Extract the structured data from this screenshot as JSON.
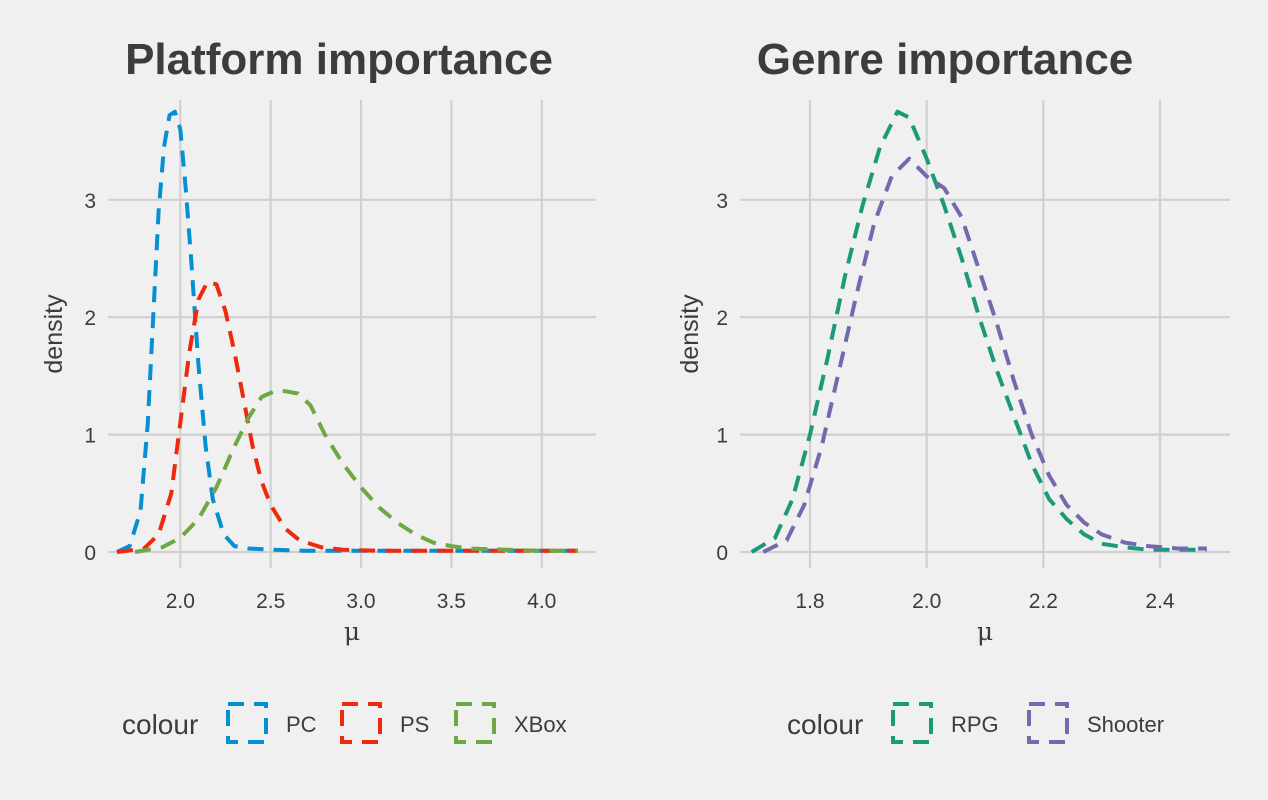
{
  "chart_data": [
    {
      "type": "line",
      "title": "Platform importance",
      "xlabel": "μ",
      "ylabel": "density",
      "xlim": [
        1.6,
        4.3
      ],
      "ylim": [
        0,
        3.85
      ],
      "xticks": [
        2.0,
        2.5,
        3.0,
        3.5,
        4.0
      ],
      "xtick_labels": [
        "2.0",
        "2.5",
        "3.0",
        "3.5",
        "4.0"
      ],
      "yticks": [
        0,
        1,
        2,
        3
      ],
      "ytick_labels": [
        "0",
        "1",
        "2",
        "3"
      ],
      "grid": true,
      "legend": {
        "title": "colour",
        "position": "bottom"
      },
      "series": [
        {
          "name": "PC",
          "color": "#0590d4",
          "x": [
            1.65,
            1.72,
            1.78,
            1.82,
            1.85,
            1.88,
            1.91,
            1.94,
            1.97,
            2.0,
            2.03,
            2.06,
            2.1,
            2.14,
            2.18,
            2.24,
            2.3,
            2.38,
            2.5,
            2.7,
            3.0,
            3.5,
            4.0,
            4.2
          ],
          "y": [
            0.0,
            0.05,
            0.35,
            1.1,
            2.0,
            2.9,
            3.45,
            3.72,
            3.75,
            3.6,
            3.1,
            2.5,
            1.6,
            0.9,
            0.45,
            0.15,
            0.05,
            0.03,
            0.02,
            0.01,
            0.01,
            0.01,
            0.01,
            0.01
          ]
        },
        {
          "name": "PS",
          "color": "#ee2a0e",
          "x": [
            1.65,
            1.8,
            1.88,
            1.95,
            2.0,
            2.05,
            2.1,
            2.15,
            2.2,
            2.25,
            2.3,
            2.35,
            2.4,
            2.45,
            2.5,
            2.58,
            2.66,
            2.78,
            2.9,
            3.1,
            3.4,
            3.7,
            4.0,
            4.2
          ],
          "y": [
            0.0,
            0.03,
            0.15,
            0.5,
            1.1,
            1.7,
            2.15,
            2.3,
            2.28,
            2.05,
            1.7,
            1.3,
            0.9,
            0.6,
            0.4,
            0.2,
            0.1,
            0.04,
            0.02,
            0.01,
            0.01,
            0.01,
            0.01,
            0.01
          ]
        },
        {
          "name": "XBox",
          "color": "#6ea845",
          "x": [
            1.75,
            1.9,
            2.0,
            2.1,
            2.2,
            2.3,
            2.38,
            2.45,
            2.52,
            2.58,
            2.65,
            2.72,
            2.8,
            2.9,
            3.0,
            3.1,
            3.2,
            3.3,
            3.4,
            3.5,
            3.6,
            3.8,
            4.0,
            4.2
          ],
          "y": [
            0.0,
            0.04,
            0.12,
            0.28,
            0.55,
            0.9,
            1.15,
            1.32,
            1.37,
            1.37,
            1.35,
            1.25,
            1.0,
            0.75,
            0.55,
            0.38,
            0.25,
            0.15,
            0.08,
            0.05,
            0.03,
            0.02,
            0.01,
            0.01
          ]
        }
      ]
    },
    {
      "type": "line",
      "title": "Genre importance",
      "xlabel": "μ",
      "ylabel": "density",
      "xlim": [
        1.68,
        2.52
      ],
      "ylim": [
        0,
        3.85
      ],
      "xticks": [
        1.8,
        2.0,
        2.2,
        2.4
      ],
      "xtick_labels": [
        "1.8",
        "2.0",
        "2.2",
        "2.4"
      ],
      "yticks": [
        0,
        1,
        2,
        3
      ],
      "ytick_labels": [
        "0",
        "1",
        "2",
        "3"
      ],
      "grid": true,
      "legend": {
        "title": "colour",
        "position": "bottom"
      },
      "series": [
        {
          "name": "RPG",
          "color": "#1a9a78",
          "x": [
            1.7,
            1.74,
            1.77,
            1.8,
            1.83,
            1.86,
            1.89,
            1.92,
            1.95,
            1.97,
            2.0,
            2.03,
            2.06,
            2.09,
            2.12,
            2.15,
            2.18,
            2.21,
            2.24,
            2.27,
            2.3,
            2.34,
            2.38,
            2.43,
            2.48
          ],
          "y": [
            0.0,
            0.12,
            0.45,
            1.0,
            1.65,
            2.35,
            2.95,
            3.45,
            3.75,
            3.7,
            3.35,
            2.95,
            2.5,
            2.0,
            1.55,
            1.15,
            0.75,
            0.45,
            0.28,
            0.15,
            0.07,
            0.04,
            0.02,
            0.02,
            0.02
          ]
        },
        {
          "name": "Shooter",
          "color": "#7469ae",
          "x": [
            1.72,
            1.76,
            1.79,
            1.82,
            1.85,
            1.88,
            1.91,
            1.94,
            1.97,
            2.0,
            2.03,
            2.06,
            2.09,
            2.12,
            2.15,
            2.18,
            2.21,
            2.24,
            2.27,
            2.3,
            2.34,
            2.38,
            2.43,
            2.48
          ],
          "y": [
            0.0,
            0.1,
            0.4,
            0.9,
            1.55,
            2.2,
            2.8,
            3.2,
            3.35,
            3.2,
            3.1,
            2.85,
            2.4,
            1.95,
            1.45,
            1.0,
            0.65,
            0.4,
            0.25,
            0.15,
            0.08,
            0.05,
            0.03,
            0.03
          ]
        }
      ]
    }
  ]
}
